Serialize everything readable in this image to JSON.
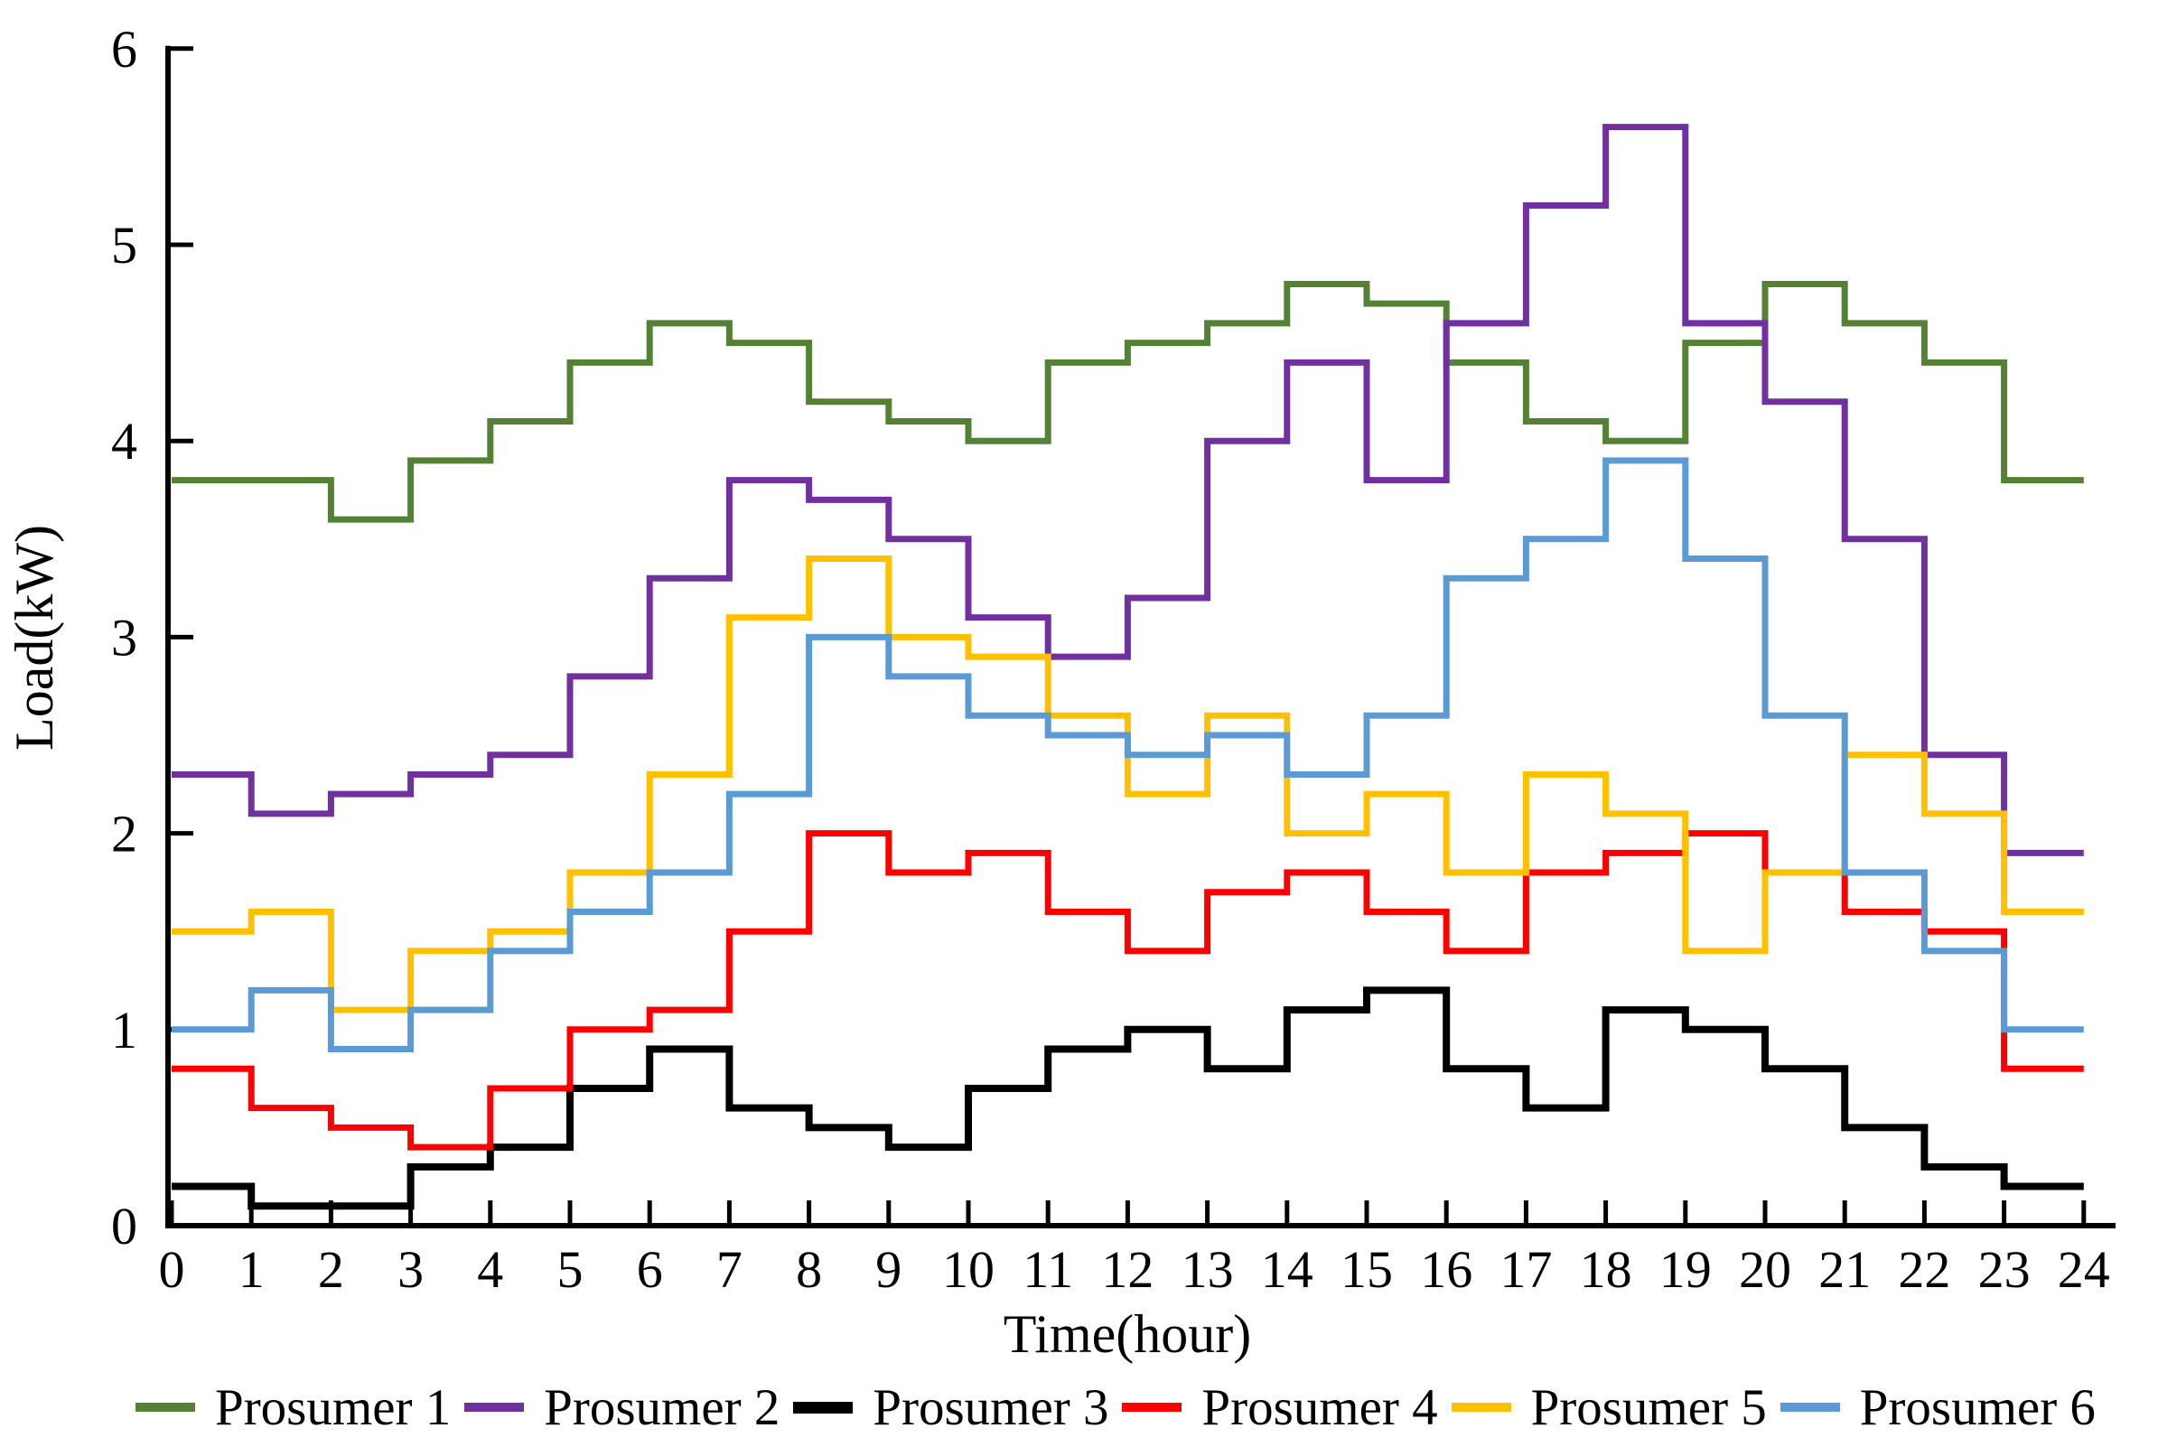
{
  "chart_data": {
    "type": "line",
    "subtype": "step-post",
    "title": "",
    "xlabel": "Time(hour)",
    "ylabel": "Load(kW)",
    "x_ticks": [
      0,
      1,
      2,
      3,
      4,
      5,
      6,
      7,
      8,
      9,
      10,
      11,
      12,
      13,
      14,
      15,
      16,
      17,
      18,
      19,
      20,
      21,
      22,
      23,
      24
    ],
    "y_ticks": [
      0,
      1,
      2,
      3,
      4,
      5,
      6
    ],
    "xlim": [
      0,
      24
    ],
    "ylim": [
      0,
      6
    ],
    "grid": false,
    "legend_position": "bottom",
    "hours": [
      0,
      1,
      2,
      3,
      4,
      5,
      6,
      7,
      8,
      9,
      10,
      11,
      12,
      13,
      14,
      15,
      16,
      17,
      18,
      19,
      20,
      21,
      22,
      23
    ],
    "series": [
      {
        "name": "Prosumer 1",
        "color": "#548235",
        "line_width": 7,
        "values": [
          3.8,
          3.8,
          3.6,
          3.9,
          4.1,
          4.4,
          4.6,
          4.5,
          4.2,
          4.1,
          4.0,
          4.4,
          4.5,
          4.6,
          4.8,
          4.7,
          4.4,
          4.1,
          4.0,
          4.5,
          4.8,
          4.6,
          4.4,
          3.8
        ]
      },
      {
        "name": "Prosumer 2",
        "color": "#7030A0",
        "line_width": 7,
        "values": [
          2.3,
          2.1,
          2.2,
          2.3,
          2.4,
          2.8,
          3.3,
          3.8,
          3.7,
          3.5,
          3.1,
          2.9,
          3.2,
          4.0,
          4.4,
          3.8,
          4.6,
          5.2,
          5.6,
          4.6,
          4.2,
          3.5,
          2.4,
          1.9
        ]
      },
      {
        "name": "Prosumer 3",
        "color": "#000000",
        "line_width": 8,
        "values": [
          0.2,
          0.1,
          0.1,
          0.3,
          0.4,
          0.7,
          0.9,
          0.6,
          0.5,
          0.4,
          0.7,
          0.9,
          1.0,
          0.8,
          1.1,
          1.2,
          0.8,
          0.6,
          1.1,
          1.0,
          0.8,
          0.5,
          0.3,
          0.2
        ]
      },
      {
        "name": "Prosumer 4",
        "color": "#FF0000",
        "line_width": 7,
        "values": [
          0.8,
          0.6,
          0.5,
          0.4,
          0.7,
          1.0,
          1.1,
          1.5,
          2.0,
          1.8,
          1.9,
          1.6,
          1.4,
          1.7,
          1.8,
          1.6,
          1.4,
          1.8,
          1.9,
          2.0,
          1.8,
          1.6,
          1.5,
          0.8
        ]
      },
      {
        "name": "Prosumer 5",
        "color": "#FFC000",
        "line_width": 7,
        "values": [
          1.5,
          1.6,
          1.1,
          1.4,
          1.5,
          1.8,
          2.3,
          3.1,
          3.4,
          3.0,
          2.9,
          2.6,
          2.2,
          2.6,
          2.0,
          2.2,
          1.8,
          2.3,
          2.1,
          1.4,
          1.8,
          2.4,
          2.1,
          1.6
        ]
      },
      {
        "name": "Prosumer 6",
        "color": "#5B9BD5",
        "line_width": 7,
        "values": [
          1.0,
          1.2,
          0.9,
          1.1,
          1.4,
          1.6,
          1.8,
          2.2,
          3.0,
          2.8,
          2.6,
          2.5,
          2.4,
          2.5,
          2.3,
          2.6,
          3.3,
          3.5,
          3.9,
          3.4,
          2.6,
          1.8,
          1.4,
          1.0
        ]
      }
    ]
  },
  "legend": {
    "items": [
      {
        "label": "Prosumer 1",
        "color": "#548235"
      },
      {
        "label": "Prosumer 2",
        "color": "#7030A0"
      },
      {
        "label": "Prosumer 3",
        "color": "#000000"
      },
      {
        "label": "Prosumer 4",
        "color": "#FF0000"
      },
      {
        "label": "Prosumer 5",
        "color": "#FFC000"
      },
      {
        "label": "Prosumer 6",
        "color": "#5B9BD5"
      }
    ]
  }
}
